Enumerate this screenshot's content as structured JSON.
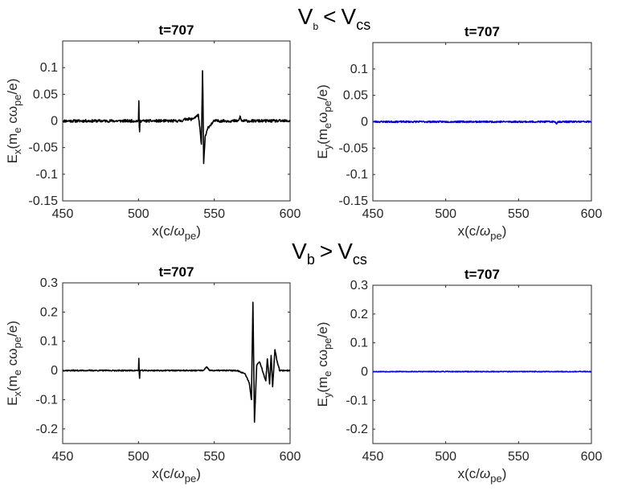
{
  "conditions": {
    "top": {
      "main": "V",
      "sub1": "b",
      "op": "<",
      "main2": "V",
      "sub2": "cs"
    },
    "bottom": {
      "main": "V",
      "sub1": "b",
      "op": ">",
      "main2": "V",
      "sub2": "cs"
    }
  },
  "axis_label_parts": {
    "x": {
      "pre": "x(c/",
      "omega": "ω",
      "omega_sub": "pe",
      "post": ")"
    },
    "ex": {
      "pre": "E",
      "sub": "x",
      "open": "(m",
      "me_sub": "e",
      "mid": " cω",
      "w_sub": "pe",
      "end": "/e)"
    },
    "ey_top": {
      "pre": "E",
      "sub": "y",
      "open": "(m",
      "me_sub": "e",
      "mid": "ω",
      "w_sub": "pe",
      "end": "/e)"
    },
    "ey_bottom": {
      "pre": "E",
      "sub": "y",
      "open": "(m",
      "me_sub": "e",
      "mid": " cω",
      "w_sub": "pe",
      "end": "/e)"
    }
  },
  "chart_data": [
    {
      "id": "p1",
      "type": "line",
      "title": "t=707",
      "xlabel": "x(c/ωpe)",
      "ylabel": "Ex(me cωpe/e)",
      "ylabel_style": "ex",
      "xlim": [
        450,
        600
      ],
      "ylim": [
        -0.15,
        0.15
      ],
      "xticks": [
        450,
        500,
        550,
        600
      ],
      "yticks": [
        -0.15,
        -0.1,
        -0.05,
        0,
        0.05,
        0.1
      ],
      "ytick_labels": [
        "-0.15",
        "-0.1",
        "-0.05",
        "0",
        "0.05",
        "0.1"
      ],
      "series": [
        {
          "color": "#000000",
          "noise": 0.0025,
          "seed": 11,
          "features": [
            [
              500.0,
              0
            ],
            [
              500.3,
              0.044
            ],
            [
              500.6,
              -0.034
            ],
            [
              501.0,
              0
            ],
            [
              528.0,
              0
            ],
            [
              532.0,
              0.004
            ],
            [
              535.0,
              0.003
            ],
            [
              538.0,
              0.008
            ],
            [
              539.5,
              0.011
            ],
            [
              540.5,
              -0.015
            ],
            [
              541.5,
              -0.045
            ],
            [
              542.3,
              0.103
            ],
            [
              543.0,
              -0.08
            ],
            [
              544.0,
              -0.03
            ],
            [
              546.0,
              -0.012
            ],
            [
              548.0,
              -0.006
            ],
            [
              550.0,
              0
            ],
            [
              566.0,
              0
            ],
            [
              567.0,
              0.008
            ],
            [
              568.0,
              0
            ]
          ]
        }
      ]
    },
    {
      "id": "p2",
      "type": "line",
      "title": "t=707",
      "xlabel": "x(c/ωpe)",
      "ylabel": "Ey(me ωpe/e)",
      "ylabel_style": "ey_top",
      "xlim": [
        450,
        600
      ],
      "ylim": [
        -0.15,
        0.15
      ],
      "xticks": [
        450,
        500,
        550,
        600
      ],
      "yticks": [
        -0.15,
        -0.1,
        -0.05,
        0,
        0.05,
        0.1
      ],
      "ytick_labels": [
        "-0.15",
        "-0.1",
        "-0.05",
        "0",
        "0.05",
        "0.1"
      ],
      "series": [
        {
          "color": "#0000cc",
          "noise": 0.0015,
          "seed": 23,
          "features": [
            [
              575.0,
              0
            ],
            [
              576.0,
              -0.003
            ],
            [
              577.0,
              0
            ]
          ]
        }
      ]
    },
    {
      "id": "p3",
      "type": "line",
      "title": "t=707",
      "xlabel": "x(c/ωpe)",
      "ylabel": "Ex(me cωpe/e)",
      "ylabel_style": "ex",
      "xlim": [
        450,
        600
      ],
      "ylim": [
        -0.25,
        0.3
      ],
      "xticks": [
        450,
        500,
        550,
        600
      ],
      "yticks": [
        -0.2,
        -0.1,
        0,
        0.1,
        0.2,
        0.3
      ],
      "ytick_labels": [
        "-0.2",
        "-0.1",
        "0",
        "0.1",
        "0.2",
        "0.3"
      ],
      "series": [
        {
          "color": "#000000",
          "noise": 0.002,
          "seed": 37,
          "features": [
            [
              500.0,
              0
            ],
            [
              500.3,
              0.05
            ],
            [
              500.6,
              -0.04
            ],
            [
              501.0,
              0
            ],
            [
              543.0,
              0
            ],
            [
              545.0,
              0.012
            ],
            [
              547.0,
              0
            ],
            [
              565.0,
              0
            ],
            [
              570.0,
              -0.01
            ],
            [
              573.0,
              -0.04
            ],
            [
              574.5,
              -0.1
            ],
            [
              575.5,
              0.233
            ],
            [
              576.5,
              -0.175
            ],
            [
              578.0,
              0.02
            ],
            [
              580.0,
              0.03
            ],
            [
              583.0,
              -0.02
            ],
            [
              584.0,
              -0.035
            ],
            [
              585.0,
              0.04
            ],
            [
              586.5,
              -0.045
            ],
            [
              587.5,
              0.05
            ],
            [
              588.5,
              -0.055
            ],
            [
              590.0,
              0.072
            ],
            [
              591.5,
              0.03
            ],
            [
              593.0,
              0.005
            ]
          ]
        }
      ]
    },
    {
      "id": "p4",
      "type": "line",
      "title": "t=707",
      "xlabel": "x(c/ωpe)",
      "ylabel": "Ey(me cωpe/e)",
      "ylabel_style": "ey_bottom",
      "xlim": [
        450,
        600
      ],
      "ylim": [
        -0.25,
        0.3
      ],
      "xticks": [
        450,
        500,
        550,
        600
      ],
      "yticks": [
        -0.2,
        -0.1,
        0,
        0.1,
        0.2,
        0.3
      ],
      "ytick_labels": [
        "-0.2",
        "-0.1",
        "0",
        "0.1",
        "0.2",
        "0.3"
      ],
      "series": [
        {
          "color": "#0000cc",
          "noise": 0.0012,
          "seed": 53,
          "features": []
        }
      ]
    }
  ]
}
